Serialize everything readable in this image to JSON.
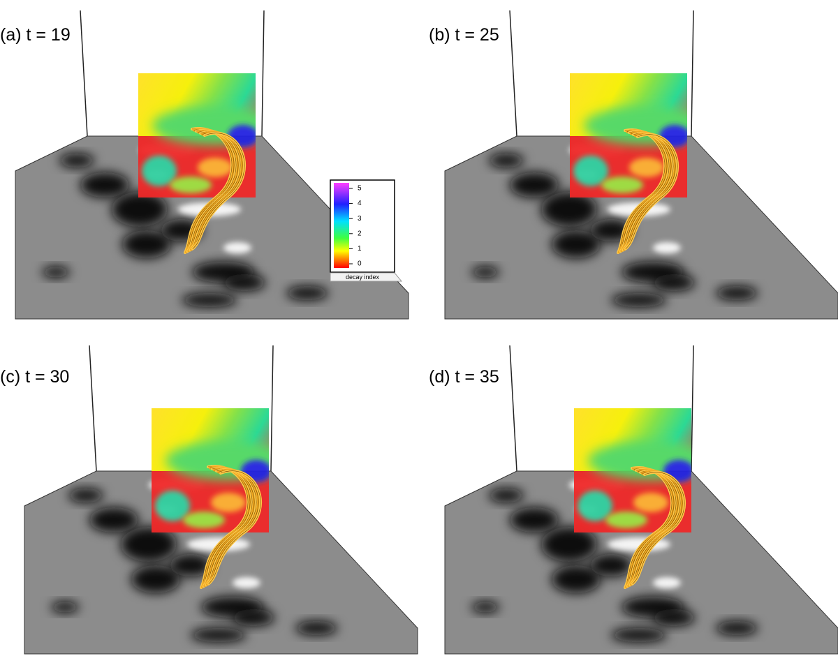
{
  "panels": [
    {
      "label": "(a) t = 19"
    },
    {
      "label": "(b) t = 25"
    },
    {
      "label": "(c) t = 30"
    },
    {
      "label": "(d) t = 35"
    }
  ],
  "colorbar": {
    "title": "decay index",
    "ticks": [
      0,
      1,
      2,
      3,
      4,
      5
    ]
  }
}
